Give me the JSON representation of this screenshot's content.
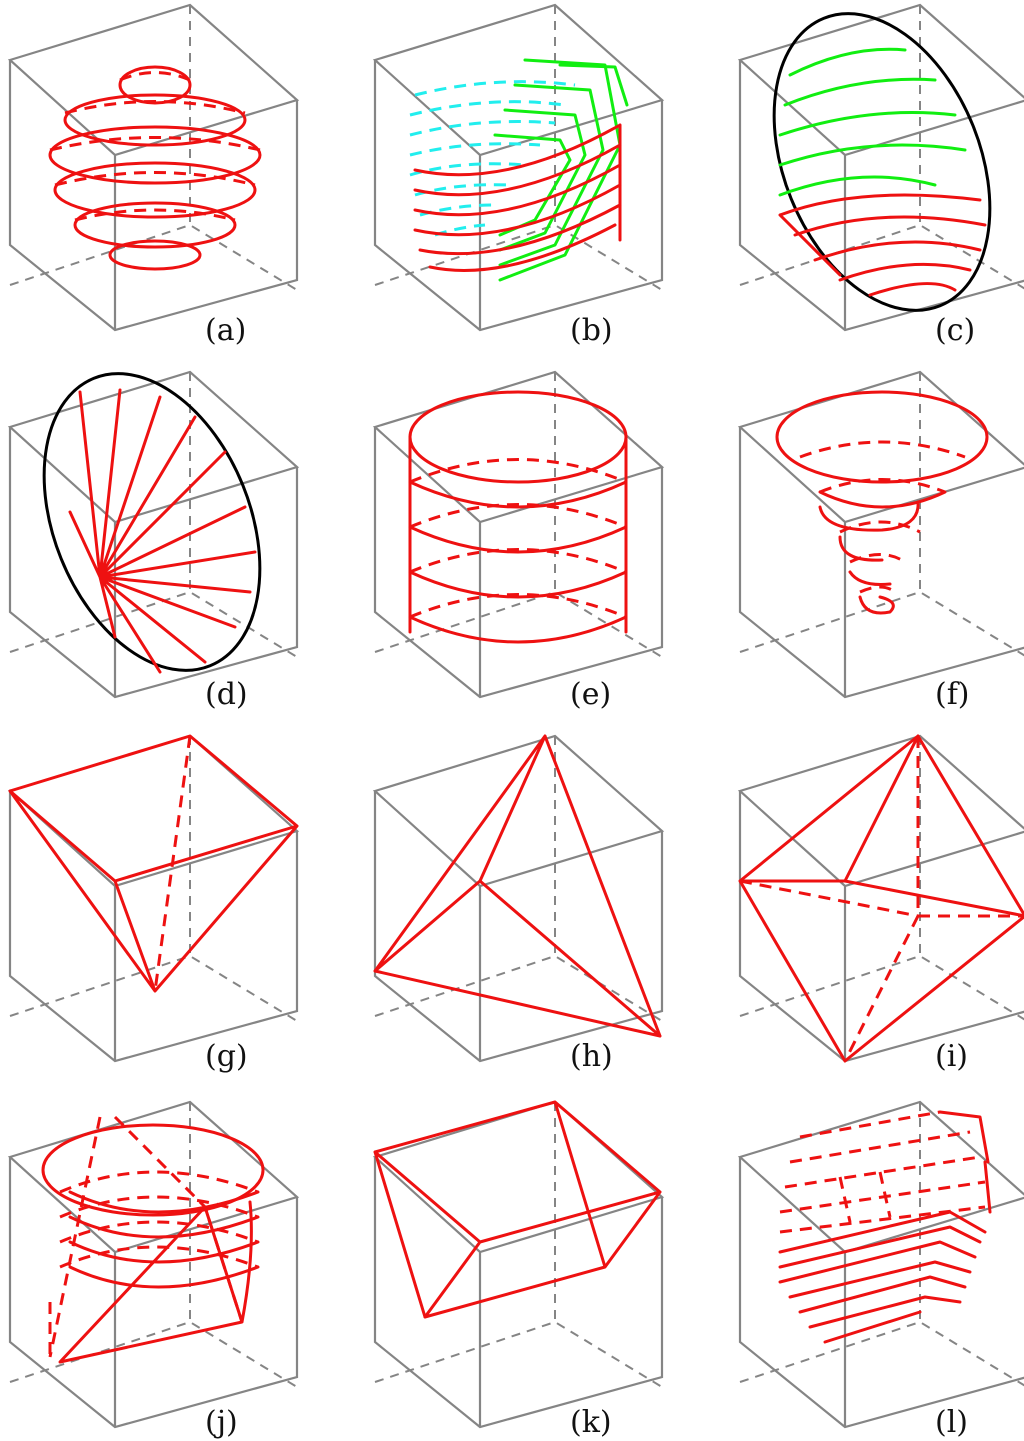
{
  "figure": {
    "panels": [
      {
        "id": "a",
        "label": "(a)"
      },
      {
        "id": "b",
        "label": "(b)"
      },
      {
        "id": "c",
        "label": "(c)"
      },
      {
        "id": "d",
        "label": "(d)"
      },
      {
        "id": "e",
        "label": "(e)"
      },
      {
        "id": "f",
        "label": "(f)"
      },
      {
        "id": "g",
        "label": "(g)"
      },
      {
        "id": "h",
        "label": "(h)"
      },
      {
        "id": "i",
        "label": "(i)"
      },
      {
        "id": "j",
        "label": "(j)"
      },
      {
        "id": "k",
        "label": "(k)"
      },
      {
        "id": "l",
        "label": "(l)"
      }
    ],
    "colors": {
      "box_edge": "#858585",
      "primary_curve": "#ee1111",
      "secondary_curve": "#11ee11",
      "tertiary_curve": "#22eeee",
      "outline": "#000000"
    }
  }
}
